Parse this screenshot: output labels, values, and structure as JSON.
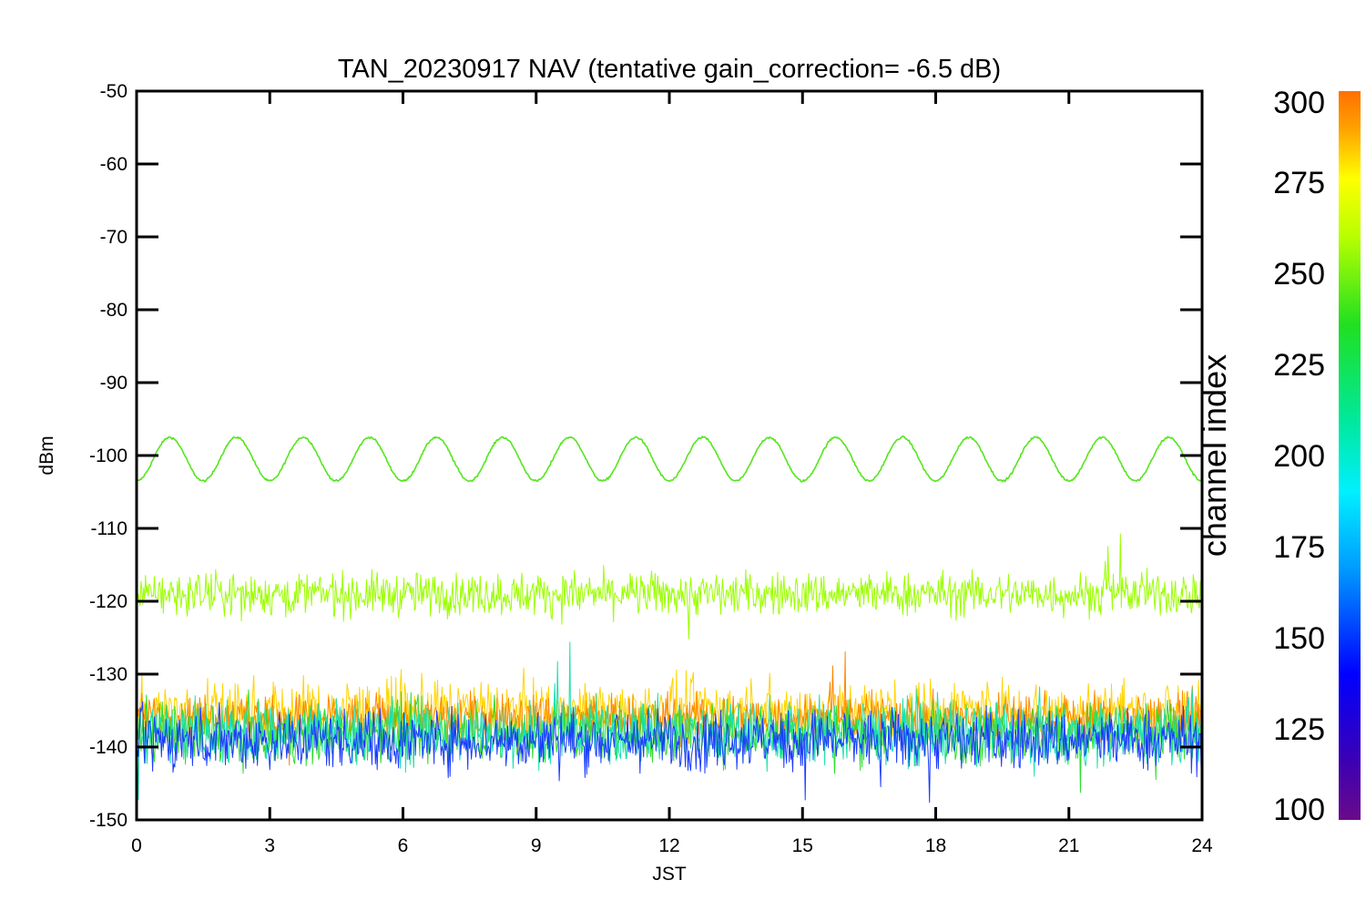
{
  "chart_data": {
    "type": "line",
    "title": "TAN_20230917 NAV (tentative gain_correction= -6.5 dB)",
    "xlabel": "JST",
    "ylabel": "dBm",
    "xlim": [
      0,
      24
    ],
    "ylim": [
      -150,
      -50
    ],
    "x_ticks": [
      0,
      3,
      6,
      9,
      12,
      15,
      18,
      21,
      24
    ],
    "y_ticks": [
      -50,
      -60,
      -70,
      -80,
      -90,
      -100,
      -110,
      -120,
      -130,
      -140,
      -150
    ],
    "grid": false,
    "colorbar": {
      "label": "channel index",
      "range": [
        100,
        300
      ],
      "ticks": [
        300,
        275,
        250,
        225,
        200,
        175,
        150,
        125,
        100
      ],
      "colormap": "rainbow"
    },
    "series": [
      {
        "channel": 250,
        "color": "#55e61e",
        "style": "sinusoid",
        "mean_dbm": -100.5,
        "amplitude_db": 3.0,
        "period_hours": 1.5,
        "peak_hours": [
          0.75,
          2.25,
          3.75,
          5.25,
          6.75,
          8.25,
          9.75,
          11.25,
          12.75,
          14.25,
          15.75,
          17.25,
          18.75,
          20.25,
          21.75,
          23.25
        ]
      },
      {
        "channel": 258,
        "color": "#9bff00",
        "style": "noise-band",
        "center_dbm": -119,
        "band_dbm": [
          -124,
          -114
        ]
      },
      {
        "channel": 280,
        "color": "#ffd400",
        "style": "noise-band",
        "center_dbm": -135,
        "band_dbm": [
          -142,
          -128
        ]
      },
      {
        "channel": 295,
        "color": "#ff8800",
        "style": "noise-band",
        "center_dbm": -136,
        "band_dbm": [
          -141,
          -130
        ]
      },
      {
        "channel": 230,
        "color": "#2fdc2f",
        "style": "noise-band",
        "center_dbm": -138,
        "band_dbm": [
          -145,
          -131
        ]
      },
      {
        "channel": 190,
        "color": "#1ee0b0",
        "style": "noise-band",
        "center_dbm": -138,
        "band_dbm": [
          -146,
          -131
        ]
      },
      {
        "channel": 140,
        "color": "#1a3cff",
        "style": "noise-band",
        "center_dbm": -139,
        "band_dbm": [
          -147,
          -133
        ]
      }
    ]
  }
}
